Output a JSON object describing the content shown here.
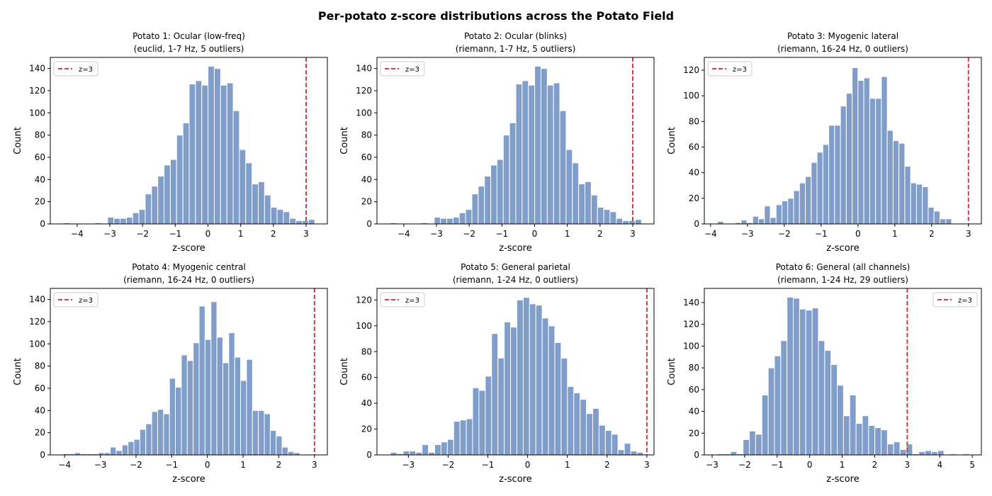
{
  "suptitle": "Per-potato z-score distributions across the Potato Field",
  "colors": {
    "bar": "#819dca",
    "bar_edge": "#ffffff",
    "threshold_line": "#c8404a"
  },
  "chart_data": [
    {
      "type": "bar",
      "title": [
        "Potato 1: Ocular (low-freq)",
        "(euclid, 1-7 Hz, 5 outliers)"
      ],
      "xlabel": "z-score",
      "ylabel": "Count",
      "xlim": [
        -4.82,
        3.65
      ],
      "ylim": [
        0,
        150
      ],
      "xticks": [
        -4,
        -3,
        -2,
        -1,
        0,
        1,
        2,
        3
      ],
      "yticks": [
        0,
        20,
        40,
        60,
        80,
        100,
        120,
        140
      ],
      "bin_start": -4.414,
      "bin_width": 0.192,
      "values": [
        1,
        0,
        0,
        0,
        0,
        1,
        0,
        6,
        5,
        5,
        6,
        10,
        13,
        27,
        34,
        43,
        53,
        58,
        80,
        91,
        126,
        129,
        125,
        142,
        140,
        125,
        127,
        102,
        67,
        55,
        36,
        38,
        26,
        15,
        13,
        11,
        5,
        3,
        3,
        4
      ],
      "threshold": 3,
      "legend": {
        "label": "z=3",
        "position": "upper-left"
      },
      "grid": false
    },
    {
      "type": "bar",
      "title": [
        "Potato 2: Ocular (blinks)",
        "(riemann, 1-7 Hz, 5 outliers)"
      ],
      "xlabel": "z-score",
      "ylabel": "Count",
      "xlim": [
        -4.82,
        3.65
      ],
      "ylim": [
        0,
        150
      ],
      "xticks": [
        -4,
        -3,
        -2,
        -1,
        0,
        1,
        2,
        3
      ],
      "yticks": [
        0,
        20,
        40,
        60,
        80,
        100,
        120,
        140
      ],
      "bin_start": -4.414,
      "bin_width": 0.192,
      "values": [
        1,
        0,
        0,
        0,
        0,
        1,
        0,
        6,
        5,
        5,
        6,
        10,
        13,
        27,
        34,
        43,
        53,
        58,
        80,
        91,
        126,
        129,
        125,
        142,
        140,
        125,
        127,
        102,
        67,
        55,
        36,
        38,
        26,
        15,
        13,
        11,
        5,
        3,
        3,
        4
      ],
      "threshold": 3,
      "legend": {
        "label": "z=3",
        "position": "upper-left"
      },
      "grid": false
    },
    {
      "type": "bar",
      "title": [
        "Potato 3: Myogenic lateral",
        "(riemann, 16-24 Hz, 0 outliers)"
      ],
      "xlabel": "z-score",
      "ylabel": "Count",
      "xlim": [
        -4.17,
        3.35
      ],
      "ylim": [
        0,
        130
      ],
      "xticks": [
        -4,
        -3,
        -2,
        -1,
        0,
        1,
        2,
        3
      ],
      "yticks": [
        0,
        20,
        40,
        60,
        80,
        100,
        120
      ],
      "bin_start": -3.81,
      "bin_width": 0.1588,
      "values": [
        2,
        0,
        0,
        1,
        3,
        1,
        6,
        4,
        14,
        5,
        15,
        18,
        20,
        26,
        32,
        37,
        48,
        56,
        62,
        77,
        77,
        92,
        102,
        122,
        112,
        114,
        98,
        98,
        115,
        73,
        65,
        63,
        45,
        32,
        31,
        29,
        13,
        10,
        4,
        4
      ],
      "threshold": 3,
      "legend": {
        "label": "z=3",
        "position": "upper-left"
      },
      "grid": false
    },
    {
      "type": "bar",
      "title": [
        "Potato 4: Myogenic central",
        "(riemann, 16-24 Hz, 0 outliers)"
      ],
      "xlabel": "z-score",
      "ylabel": "Count",
      "xlim": [
        -4.4,
        3.36
      ],
      "ylim": [
        0,
        150
      ],
      "xticks": [
        -4,
        -3,
        -2,
        -1,
        0,
        1,
        2,
        3
      ],
      "yticks": [
        0,
        20,
        40,
        60,
        80,
        100,
        120,
        140
      ],
      "bin_start": -4.05,
      "bin_width": 0.166,
      "values": [
        1,
        1,
        2,
        1,
        1,
        1,
        2,
        2,
        7,
        4,
        9,
        12,
        14,
        23,
        28,
        39,
        41,
        37,
        69,
        61,
        90,
        85,
        101,
        134,
        104,
        138,
        106,
        83,
        110,
        88,
        67,
        86,
        40,
        40,
        37,
        22,
        17,
        7,
        3,
        2
      ],
      "threshold": 3,
      "legend": {
        "label": "z=3",
        "position": "upper-left"
      },
      "grid": false
    },
    {
      "type": "bar",
      "title": [
        "Potato 5: General parietal",
        "(riemann, 1-24 Hz, 0 outliers)"
      ],
      "xlabel": "z-score",
      "ylabel": "Count",
      "xlim": [
        -3.79,
        3.18
      ],
      "ylim": [
        0,
        129
      ],
      "xticks": [
        -3,
        -2,
        -1,
        0,
        1,
        2,
        3
      ],
      "yticks": [
        0,
        20,
        40,
        60,
        80,
        100,
        120
      ],
      "bin_start": -3.45,
      "bin_width": 0.159,
      "values": [
        2,
        1,
        3,
        3,
        2,
        8,
        2,
        8,
        10,
        12,
        26,
        27,
        28,
        52,
        50,
        61,
        94,
        75,
        103,
        99,
        120,
        122,
        117,
        116,
        106,
        100,
        87,
        75,
        53,
        48,
        43,
        32,
        36,
        23,
        19,
        16,
        4,
        9,
        3,
        2
      ],
      "threshold": 3,
      "legend": {
        "label": "z=3",
        "position": "upper-left"
      },
      "grid": false
    },
    {
      "type": "bar",
      "title": [
        "Potato 6: General (all channels)",
        "(riemann, 1-24 Hz, 29 outliers)"
      ],
      "xlabel": "z-score",
      "ylabel": "Count",
      "xlim": [
        -3.24,
        5.28
      ],
      "ylim": [
        0,
        153
      ],
      "xticks": [
        -3,
        -2,
        -1,
        0,
        1,
        2,
        3,
        4,
        5
      ],
      "yticks": [
        0,
        20,
        40,
        60,
        80,
        100,
        120,
        140
      ],
      "bin_start": -2.82,
      "bin_width": 0.193,
      "values": [
        1,
        1,
        3,
        1,
        14,
        22,
        19,
        55,
        80,
        91,
        105,
        145,
        144,
        134,
        133,
        135,
        105,
        96,
        83,
        64,
        36,
        55,
        29,
        36,
        27,
        25,
        23,
        10,
        12,
        5,
        10,
        1,
        3,
        4,
        3,
        4,
        0,
        1,
        0,
        1
      ],
      "threshold": 3,
      "legend": {
        "label": "z=3",
        "position": "upper-right"
      },
      "grid": false
    }
  ]
}
